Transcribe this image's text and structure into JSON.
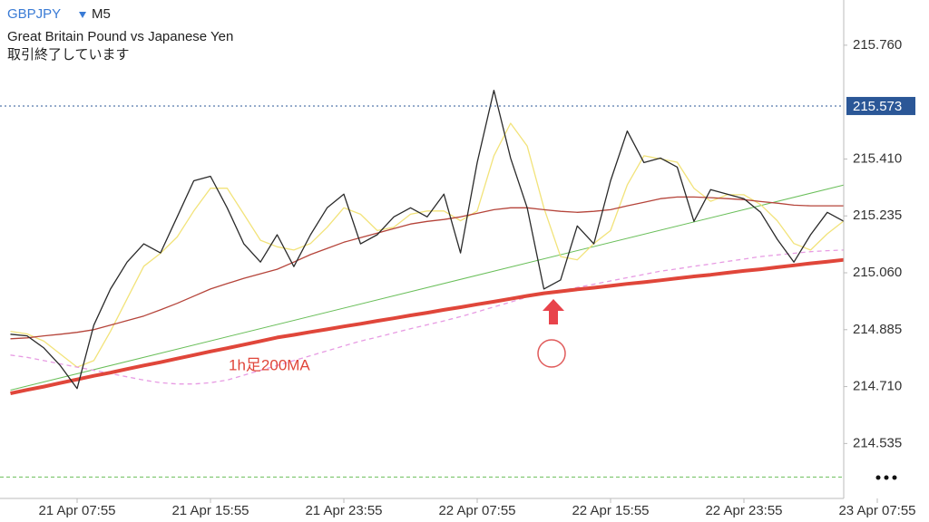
{
  "chart_data": {
    "type": "line",
    "symbol": "GBPJPY",
    "timeframe": "M5",
    "title": "Great Britain Pound vs Japanese Yen",
    "subtitle": "取引終了しています",
    "annotation": "1h足200MA",
    "categories": [
      null,
      null,
      null,
      null,
      "21 Apr 07:55",
      null,
      null,
      null,
      null,
      null,
      null,
      null,
      "21 Apr 15:55",
      null,
      null,
      null,
      null,
      null,
      null,
      null,
      "21 Apr 23:55",
      null,
      null,
      null,
      null,
      null,
      null,
      null,
      "22 Apr 07:55",
      null,
      null,
      null,
      null,
      null,
      null,
      null,
      "22 Apr 15:55",
      null,
      null,
      null,
      null,
      null,
      null,
      null,
      "22 Apr 23:55",
      null,
      null,
      null,
      null,
      null,
      null,
      null,
      "23 Apr 07:55"
    ],
    "series": [
      {
        "color": "#f2e37a",
        "line_style": "solid",
        "values": [
          214.88,
          214.872,
          214.85,
          214.81,
          214.77,
          214.79,
          214.88,
          214.98,
          215.08,
          215.12,
          215.17,
          215.25,
          215.32,
          215.32,
          215.24,
          215.16,
          215.14,
          215.13,
          215.15,
          215.2,
          215.26,
          215.24,
          215.19,
          215.2,
          215.24,
          215.25,
          215.25,
          215.22,
          215.25,
          215.42,
          215.52,
          215.45,
          215.26,
          215.11,
          215.1,
          215.15,
          215.19,
          215.33,
          215.42,
          215.41,
          215.4,
          215.32,
          215.28,
          215.3,
          215.3,
          215.27,
          215.22,
          215.15,
          215.13,
          215.18,
          215.22,
          null,
          null
        ]
      },
      {
        "color": "#e79be3",
        "line_style": "dashed",
        "values": [
          214.807,
          214.8,
          214.79,
          214.78,
          214.77,
          214.76,
          214.75,
          214.74,
          214.73,
          214.722,
          214.718,
          214.718,
          214.722,
          214.73,
          214.745,
          214.76,
          214.775,
          214.79,
          214.805,
          214.82,
          214.835,
          214.85,
          214.862,
          214.875,
          214.888,
          214.9,
          214.912,
          214.925,
          214.94,
          214.955,
          214.97,
          214.985,
          214.995,
          215.005,
          215.015,
          215.025,
          215.035,
          215.045,
          215.055,
          215.065,
          215.072,
          215.08,
          215.087,
          215.095,
          215.102,
          215.11,
          215.115,
          215.12,
          215.125,
          215.128,
          215.13,
          null,
          null
        ]
      },
      {
        "color": "#b5443a",
        "line_style": "solid",
        "values": [
          214.857,
          214.86,
          214.866,
          214.871,
          214.877,
          214.885,
          214.899,
          214.913,
          214.927,
          214.946,
          214.966,
          214.988,
          215.01,
          215.027,
          215.043,
          215.057,
          215.071,
          215.093,
          215.116,
          215.135,
          215.154,
          215.168,
          215.182,
          215.196,
          215.21,
          215.218,
          215.224,
          215.232,
          215.243,
          215.254,
          215.26,
          215.26,
          215.254,
          215.249,
          215.246,
          215.249,
          215.254,
          215.266,
          215.277,
          215.288,
          215.293,
          215.293,
          215.291,
          215.288,
          215.285,
          215.279,
          215.274,
          215.268,
          215.266,
          215.266,
          215.266,
          null,
          null
        ]
      },
      {
        "color": "#e0463a",
        "line_style": "thick",
        "values": [
          214.689,
          214.7,
          214.71,
          214.721,
          214.732,
          214.743,
          214.753,
          214.764,
          214.775,
          214.785,
          214.796,
          214.807,
          214.818,
          214.828,
          214.839,
          214.85,
          214.861,
          214.869,
          214.878,
          214.886,
          214.895,
          214.903,
          214.912,
          214.92,
          214.929,
          214.937,
          214.946,
          214.954,
          214.963,
          214.971,
          214.98,
          214.989,
          214.997,
          215.003,
          215.009,
          215.014,
          215.02,
          215.026,
          215.031,
          215.037,
          215.043,
          215.049,
          215.054,
          215.06,
          215.066,
          215.071,
          215.077,
          215.083,
          215.089,
          215.094,
          215.1,
          null,
          null
        ]
      },
      {
        "color": "#2a2a2a",
        "line_style": "solid",
        "values": [
          214.871,
          214.866,
          214.829,
          214.774,
          214.704,
          214.899,
          215.01,
          215.093,
          215.149,
          215.121,
          215.232,
          215.343,
          215.357,
          215.26,
          215.149,
          215.093,
          215.177,
          215.079,
          215.177,
          215.26,
          215.302,
          215.149,
          215.177,
          215.232,
          215.26,
          215.232,
          215.302,
          215.121,
          215.399,
          215.621,
          215.413,
          215.26,
          215.01,
          215.038,
          215.204,
          215.149,
          215.343,
          215.496,
          215.399,
          215.413,
          215.385,
          215.218,
          215.316,
          215.302,
          215.288,
          215.246,
          215.163,
          215.093,
          215.177,
          215.246,
          215.218,
          null,
          null
        ]
      }
    ],
    "trendline": {
      "color": "#6abf5a",
      "start": 214.699,
      "end": 215.33
    },
    "current_price": {
      "value": 215.573,
      "color": "#2b5797"
    },
    "levels": [
      {
        "value": 214.432,
        "color": "#6abf5a"
      }
    ],
    "ylim": [
      214.366,
      215.899
    ],
    "yticks": [
      {
        "value": 214.535,
        "label": "214.535"
      },
      {
        "value": 214.71,
        "label": "214.710"
      },
      {
        "value": 214.885,
        "label": "214.885"
      },
      {
        "value": 215.06,
        "label": "215.060"
      },
      {
        "value": 215.235,
        "label": "215.235"
      },
      {
        "value": 215.41,
        "label": "215.410"
      },
      {
        "value": 215.76,
        "label": "215.760"
      }
    ],
    "grid": false
  }
}
